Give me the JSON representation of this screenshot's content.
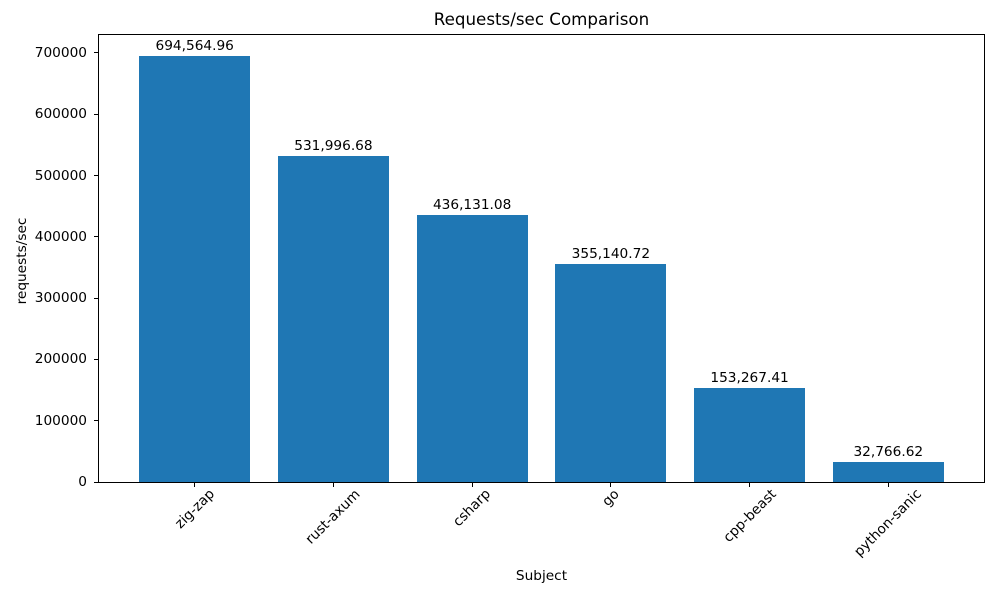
{
  "chart_data": {
    "type": "bar",
    "title": "Requests/sec Comparison",
    "xlabel": "Subject",
    "ylabel": "requests/sec",
    "categories": [
      "zig-zap",
      "rust-axum",
      "csharp",
      "go",
      "cpp-beast",
      "python-sanic"
    ],
    "values": [
      694564.96,
      531996.68,
      436131.08,
      355140.72,
      153267.41,
      32766.62
    ],
    "value_labels": [
      "694,564.96",
      "531,996.68",
      "436,131.08",
      "355,140.72",
      "153,267.41",
      "32,766.62"
    ],
    "yticks": [
      0,
      100000,
      200000,
      300000,
      400000,
      500000,
      600000,
      700000
    ],
    "ytick_labels": [
      "0",
      "100000",
      "200000",
      "300000",
      "400000",
      "500000",
      "600000",
      "700000"
    ],
    "ylim": [
      0,
      729293
    ],
    "xlim": [
      -0.69,
      5.69
    ],
    "bar_rel_width": 0.8,
    "bar_color": "#1f77b4",
    "background_color": "#ffffff",
    "text_color": "#000000",
    "spine_color": "#000000",
    "grid": false,
    "legend": null
  }
}
